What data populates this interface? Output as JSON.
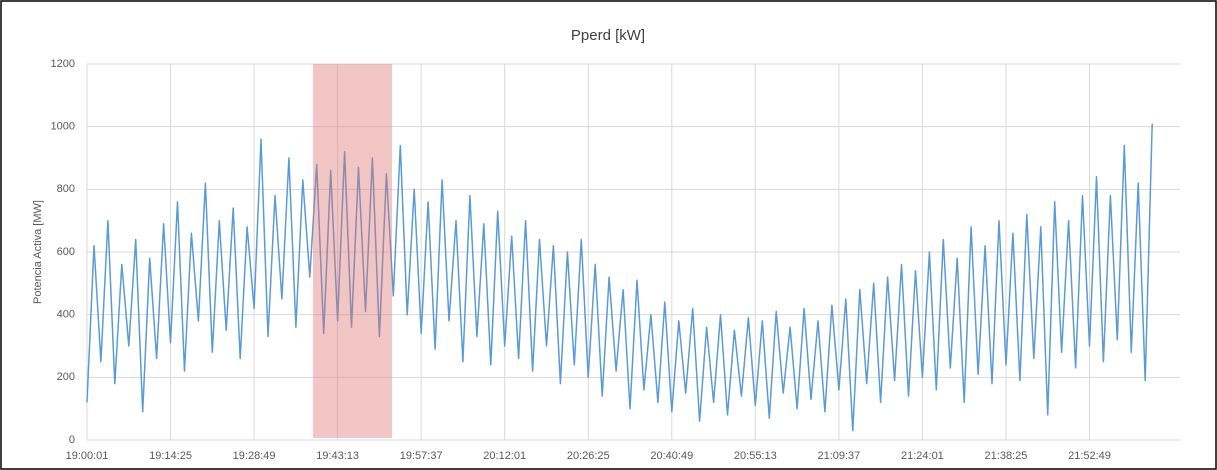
{
  "chart_data": {
    "type": "line",
    "title": "Pperd [kW]",
    "y_label": "Potencia Activa [MW]",
    "categories": [
      "19:00:01",
      null,
      null,
      null,
      null,
      null,
      null,
      null,
      null,
      null,
      null,
      null,
      "19:14:25",
      null,
      null,
      null,
      null,
      null,
      null,
      null,
      null,
      null,
      null,
      null,
      "19:28:49",
      null,
      null,
      null,
      null,
      null,
      null,
      null,
      null,
      null,
      null,
      null,
      "19:43:13",
      null,
      null,
      null,
      null,
      null,
      null,
      null,
      null,
      null,
      null,
      null,
      "19:57:37",
      null,
      null,
      null,
      null,
      null,
      null,
      null,
      null,
      null,
      null,
      null,
      "20:12:01",
      null,
      null,
      null,
      null,
      null,
      null,
      null,
      null,
      null,
      null,
      null,
      "20:26:25",
      null,
      null,
      null,
      null,
      null,
      null,
      null,
      null,
      null,
      null,
      null,
      "20:40:49",
      null,
      null,
      null,
      null,
      null,
      null,
      null,
      null,
      null,
      null,
      null,
      "20:55:13",
      null,
      null,
      null,
      null,
      null,
      null,
      null,
      null,
      null,
      null,
      null,
      "21:09:37",
      null,
      null,
      null,
      null,
      null,
      null,
      null,
      null,
      null,
      null,
      null,
      "21:24:01",
      null,
      null,
      null,
      null,
      null,
      null,
      null,
      null,
      null,
      null,
      null,
      "21:38:25",
      null,
      null,
      null,
      null,
      null,
      null,
      null,
      null,
      null,
      null,
      null,
      "21:52:49",
      null,
      null,
      null,
      null,
      null,
      null,
      null,
      null,
      null
    ],
    "series": [
      {
        "name": "Pperd [kW]",
        "color": "#5b9bd5",
        "values": [
          120,
          620,
          250,
          700,
          180,
          560,
          300,
          640,
          90,
          580,
          260,
          690,
          310,
          760,
          220,
          660,
          380,
          820,
          280,
          700,
          350,
          740,
          260,
          680,
          420,
          960,
          330,
          780,
          450,
          900,
          360,
          830,
          520,
          880,
          340,
          860,
          380,
          920,
          360,
          870,
          410,
          900,
          330,
          850,
          460,
          940,
          400,
          800,
          340,
          760,
          290,
          830,
          380,
          700,
          250,
          780,
          330,
          690,
          240,
          730,
          300,
          650,
          260,
          700,
          220,
          640,
          300,
          620,
          180,
          600,
          240,
          640,
          200,
          560,
          140,
          520,
          220,
          480,
          100,
          510,
          160,
          400,
          120,
          440,
          90,
          380,
          150,
          420,
          60,
          360,
          120,
          400,
          80,
          350,
          140,
          390,
          110,
          380,
          70,
          410,
          150,
          360,
          100,
          420,
          130,
          380,
          90,
          430,
          160,
          450,
          30,
          480,
          180,
          500,
          120,
          520,
          190,
          560,
          140,
          540,
          200,
          600,
          160,
          640,
          230,
          580,
          120,
          680,
          210,
          620,
          180,
          700,
          240,
          660,
          190,
          720,
          260,
          680,
          80,
          760,
          280,
          700,
          230,
          780,
          300,
          840,
          250,
          780,
          320,
          940,
          280,
          820,
          190,
          1010
        ]
      }
    ],
    "ylim": [
      0,
      1200
    ],
    "yticks": [
      0,
      200,
      400,
      600,
      800,
      1000,
      1200
    ],
    "grid": true
  }
}
